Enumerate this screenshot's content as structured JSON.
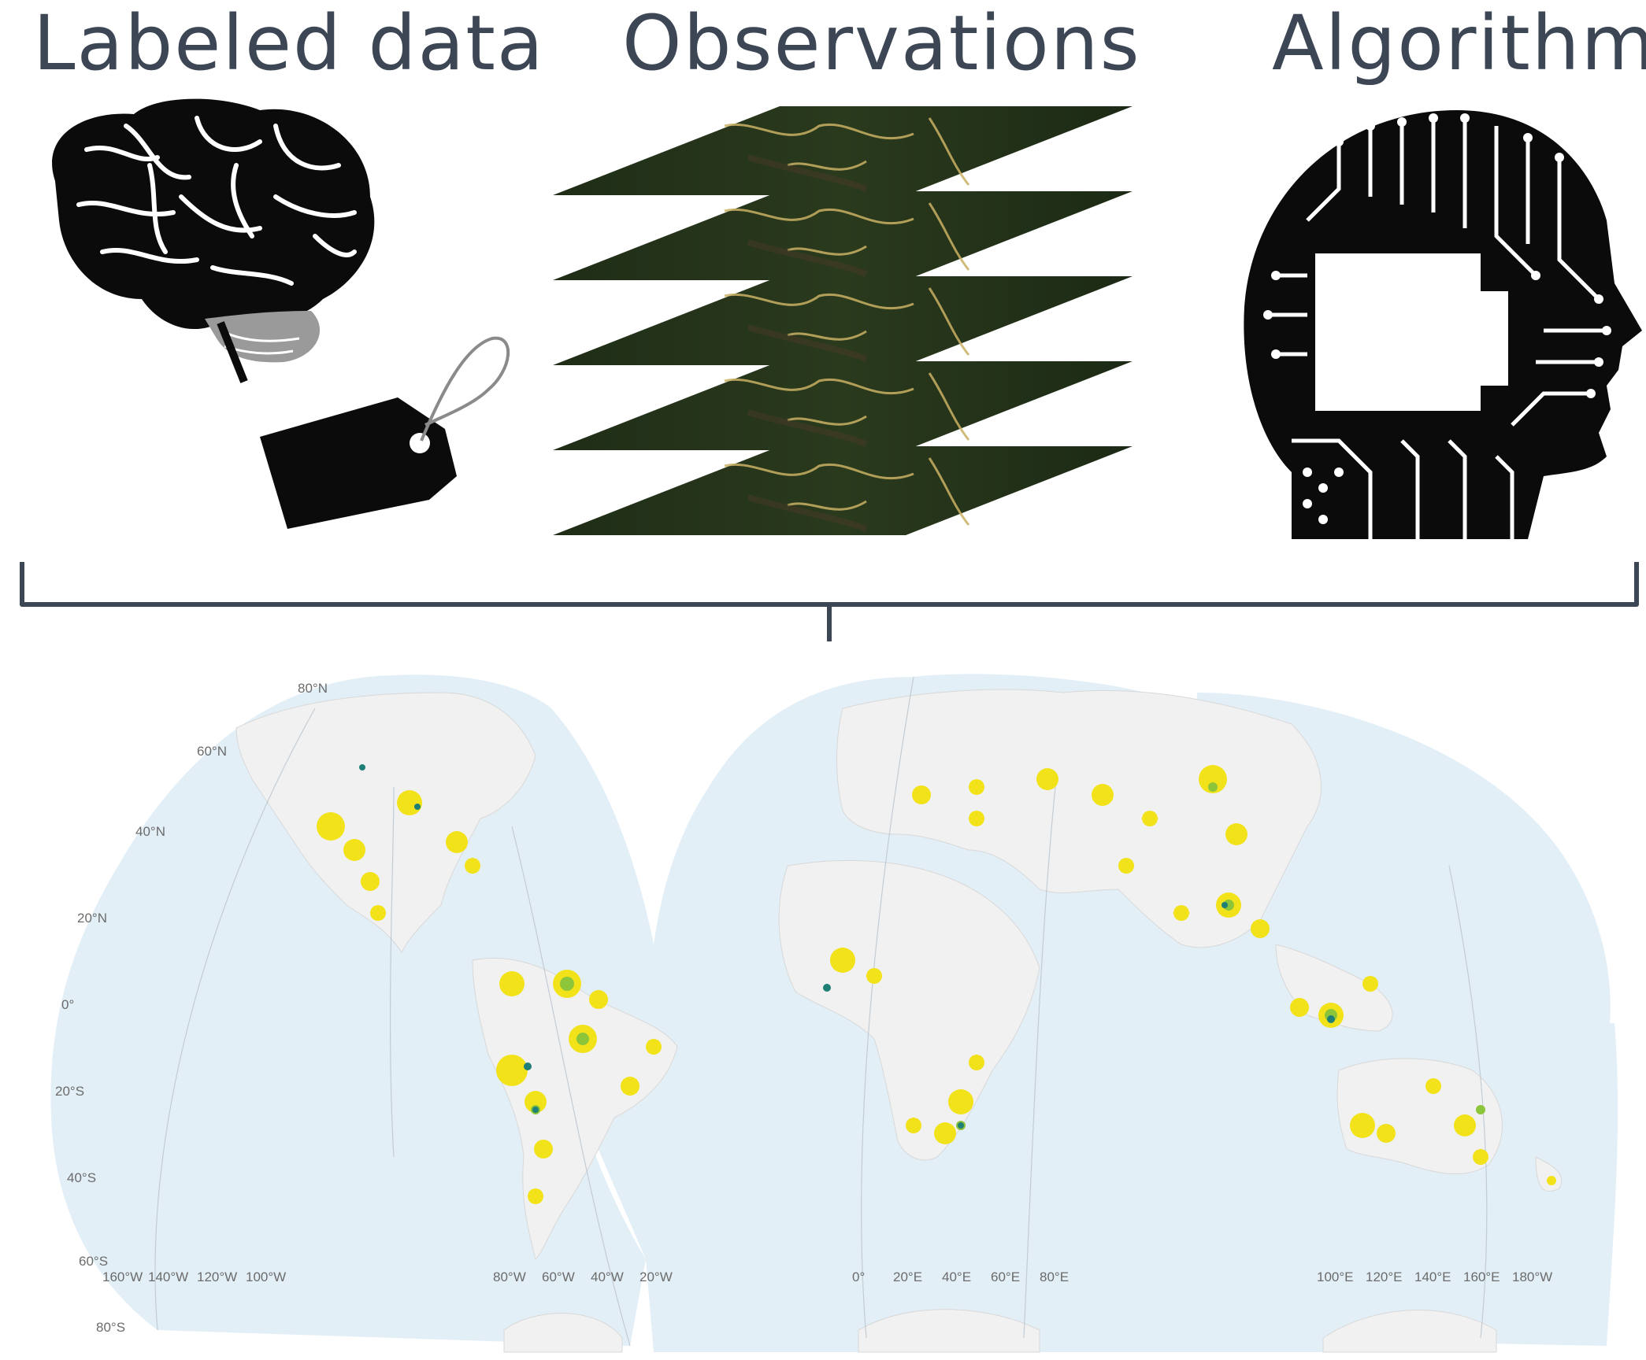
{
  "headings": {
    "labeled_data": "Labeled data",
    "observations": "Observations",
    "algorithm": "Algorithm"
  },
  "icons": {
    "brain": "brain-icon",
    "tag": "tag-icon",
    "image_stack": "satellite-image-stack",
    "ai_head": "circuit-head-icon"
  },
  "map": {
    "lat_labels": [
      "80°N",
      "60°N",
      "40°N",
      "20°N",
      "0°",
      "20°S",
      "40°S",
      "60°S",
      "80°S"
    ],
    "lon_labels_left": [
      "160°W",
      "140°W",
      "120°W",
      "100°W"
    ],
    "lon_labels_americas": [
      "80°W",
      "60°W",
      "40°W",
      "20°W"
    ],
    "lon_labels_africa": [
      "0°",
      "20°E",
      "40°E",
      "60°E",
      "80°E"
    ],
    "lon_labels_asia": [
      "100°E",
      "120°E",
      "140°E",
      "160°E",
      "180°W"
    ],
    "colors": {
      "ocean": "#e3eff7",
      "land": "#f1f1f1",
      "low": "#f2e21a",
      "mid": "#8cc43a",
      "high": "#1e7f77",
      "bracket": "#3c4654"
    }
  }
}
